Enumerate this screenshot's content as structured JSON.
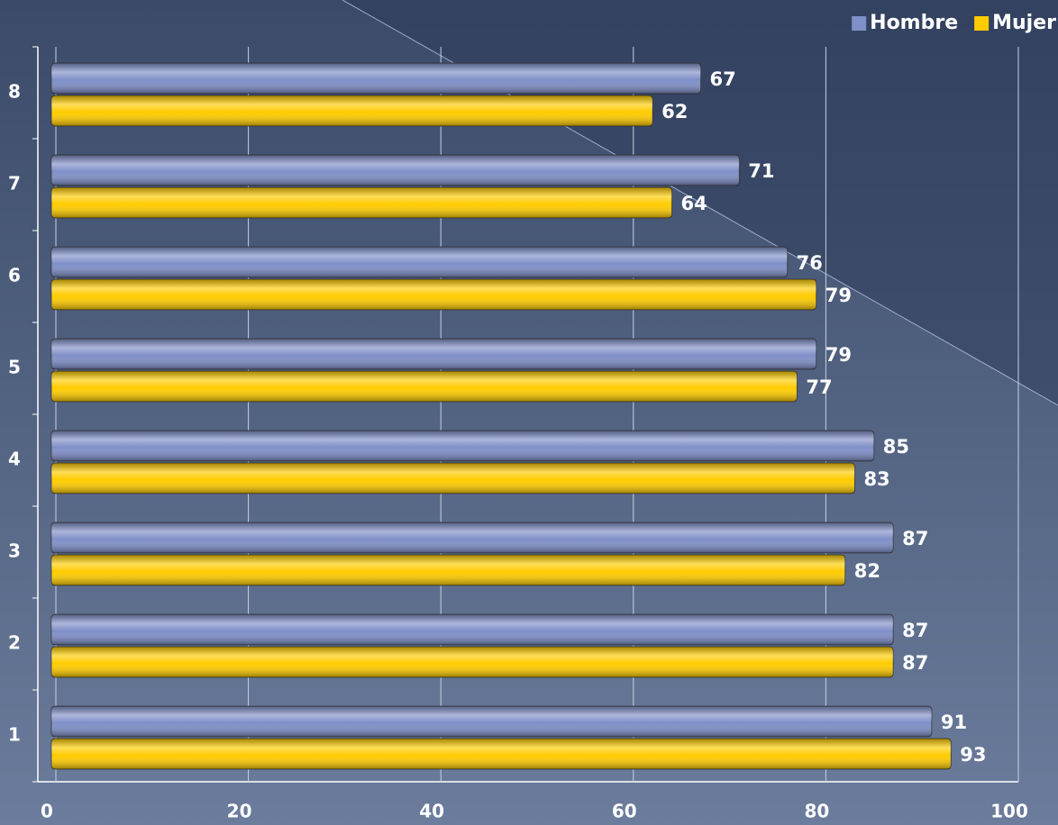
{
  "chart_data": {
    "type": "bar",
    "orientation": "horizontal",
    "categories": [
      "1",
      "2",
      "3",
      "4",
      "5",
      "6",
      "7",
      "8"
    ],
    "series": [
      {
        "name": "Hombre",
        "color": "#7f8fc8",
        "values": [
          91,
          87,
          87,
          85,
          79,
          76,
          71,
          67
        ]
      },
      {
        "name": "Mujer",
        "color": "#ffcc00",
        "values": [
          93,
          87,
          82,
          83,
          77,
          79,
          64,
          62
        ]
      }
    ],
    "xlim": [
      0,
      100
    ],
    "xticks": [
      0,
      20,
      40,
      60,
      80,
      100
    ],
    "grid": true,
    "legend": "top-right"
  }
}
